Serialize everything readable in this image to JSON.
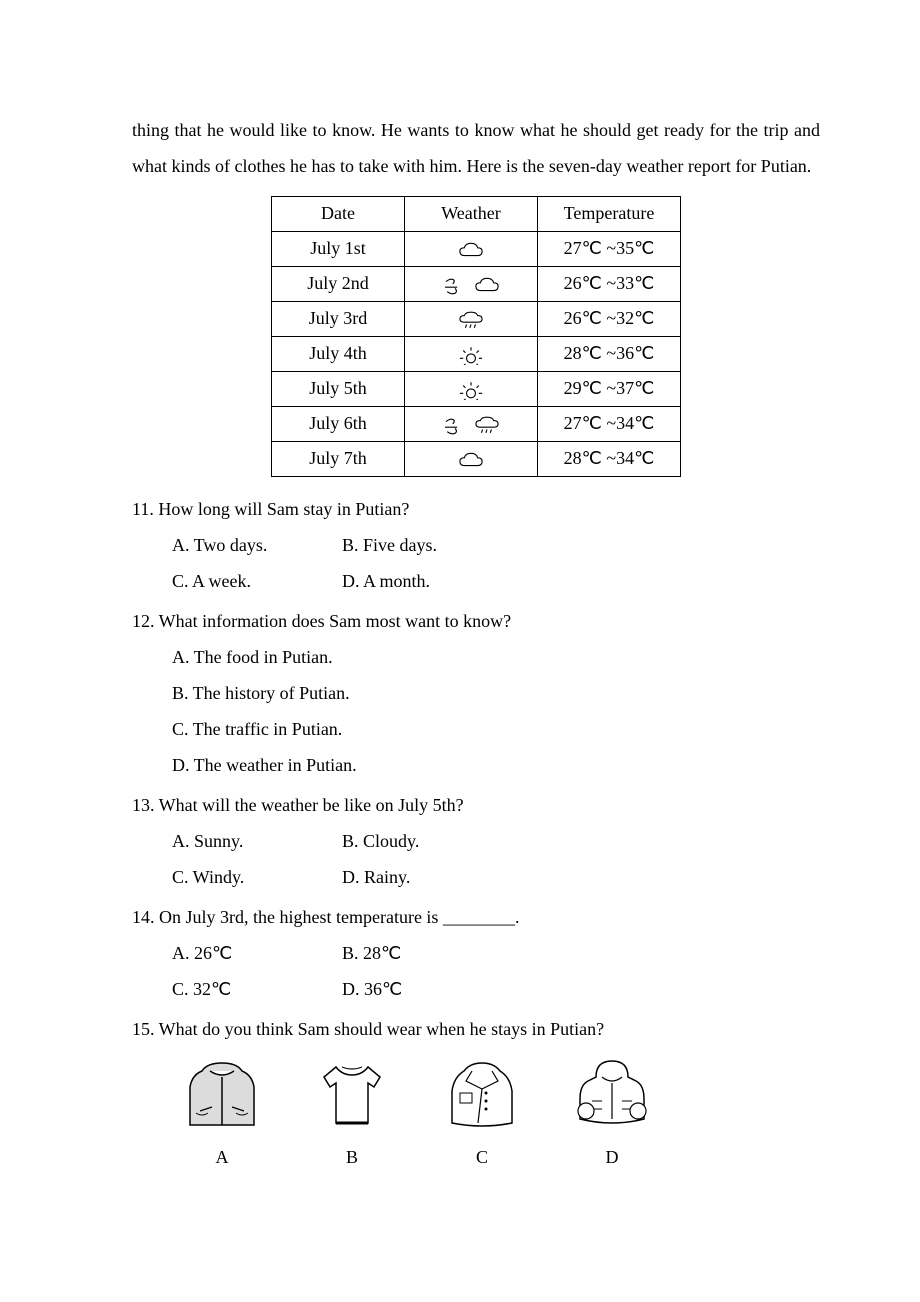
{
  "intro": "thing that he would like to know. He wants to know what he should get ready for the trip and what kinds of clothes he has to take with him. Here is the seven-day weather report for Putian.",
  "table": {
    "headers": [
      "Date",
      "Weather",
      "Temperature"
    ],
    "rows": [
      {
        "date": "July 1st",
        "icons": [
          "cloud"
        ],
        "temp": "27℃ ~35℃"
      },
      {
        "date": "July 2nd",
        "icons": [
          "wind",
          "cloud"
        ],
        "temp": "26℃ ~33℃"
      },
      {
        "date": "July 3rd",
        "icons": [
          "rain"
        ],
        "temp": "26℃ ~32℃"
      },
      {
        "date": "July 4th",
        "icons": [
          "sun"
        ],
        "temp": "28℃ ~36℃"
      },
      {
        "date": "July 5th",
        "icons": [
          "sun"
        ],
        "temp": "29℃ ~37℃"
      },
      {
        "date": "July 6th",
        "icons": [
          "wind",
          "rain"
        ],
        "temp": "27℃ ~34℃"
      },
      {
        "date": "July 7th",
        "icons": [
          "cloud"
        ],
        "temp": "28℃ ~34℃"
      }
    ]
  },
  "questions": [
    {
      "num": "11.",
      "stem": "How long will Sam stay in Putian?",
      "layout": "two-col",
      "opts": [
        [
          "A. Two days.",
          "B. Five days."
        ],
        [
          "C. A week.",
          "D. A month."
        ]
      ]
    },
    {
      "num": "12.",
      "stem": "What information does Sam most want to know?",
      "layout": "one-col",
      "opts": [
        [
          "A. The food in Putian."
        ],
        [
          "B. The history of Putian."
        ],
        [
          "C. The traffic in Putian."
        ],
        [
          "D. The weather in Putian."
        ]
      ]
    },
    {
      "num": "13.",
      "stem": "What will the weather be like on July 5th?",
      "layout": "two-col",
      "opts": [
        [
          "A. Sunny.",
          "B. Cloudy."
        ],
        [
          "C. Windy.",
          "D. Rainy."
        ]
      ]
    },
    {
      "num": "14.",
      "stem": "On July 3rd, the highest temperature is ________.",
      "layout": "two-col",
      "opts": [
        [
          "A. 26℃",
          "B. 28℃"
        ],
        [
          "C. 32℃",
          "D. 36℃"
        ]
      ]
    },
    {
      "num": "15.",
      "stem": "What do you think Sam should wear when he stays in Putian?",
      "layout": "images",
      "imageLabels": [
        "A",
        "B",
        "C",
        "D"
      ]
    }
  ]
}
